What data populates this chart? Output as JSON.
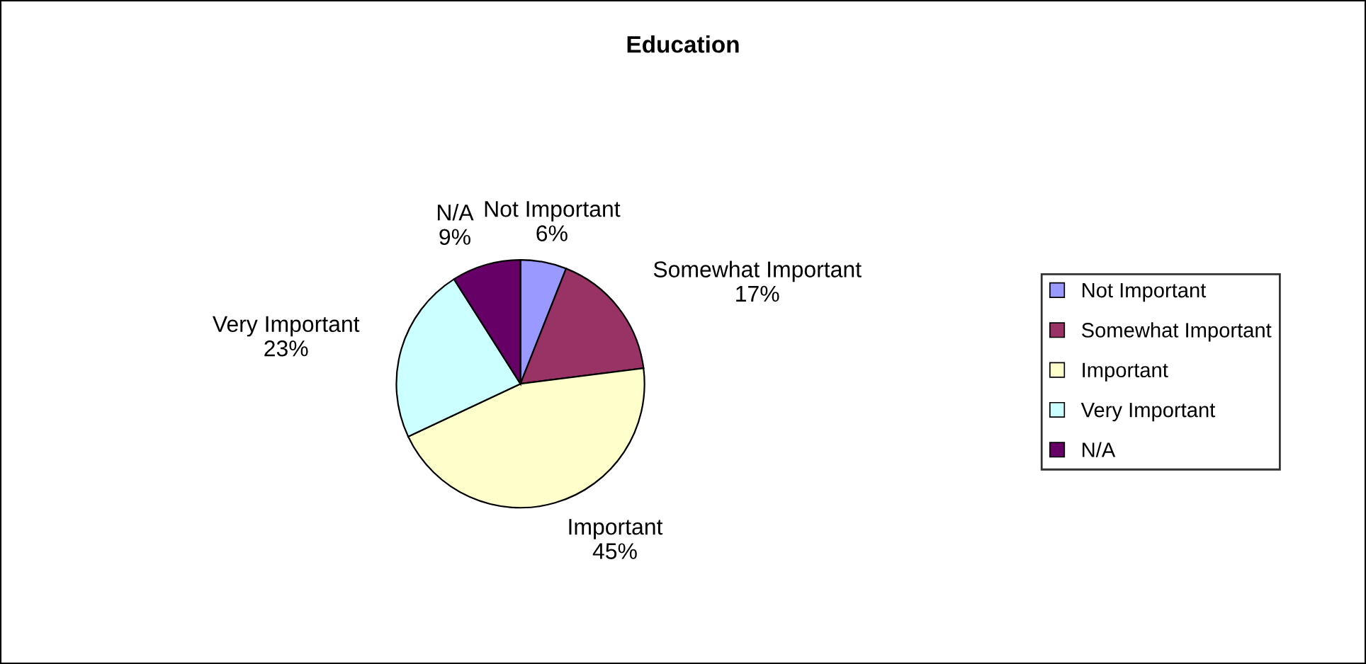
{
  "chart_data": {
    "type": "pie",
    "title": "Education",
    "categories": [
      "Not Important",
      "Somewhat Important",
      "Important",
      "Very Important",
      "N/A"
    ],
    "values": [
      6,
      17,
      45,
      23,
      9
    ],
    "colors": [
      "#9999ff",
      "#993366",
      "#ffffcc",
      "#ccffff",
      "#660066"
    ],
    "value_labels": [
      "6%",
      "17%",
      "45%",
      "23%",
      "9%"
    ],
    "legend": "right"
  }
}
